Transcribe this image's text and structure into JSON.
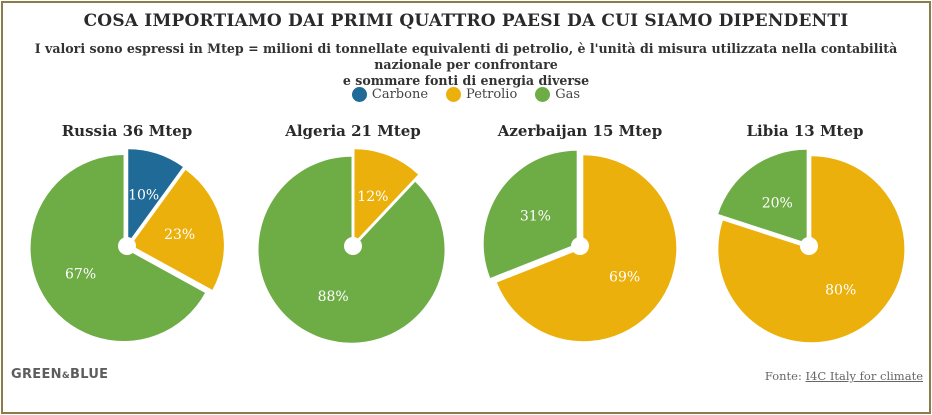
{
  "header": {
    "title": "COSA IMPORTIAMO DAI PRIMI QUATTRO PAESI DA CUI SIAMO DIPENDENTI",
    "subtitle_line1": "I valori sono espressi in Mtep = milioni di tonnellate equivalenti di petrolio, è l'unità di misura utilizzata nella contabilità nazionale per confrontare",
    "subtitle_line2": "e sommare fonti di energia diverse"
  },
  "legend": [
    {
      "label": "Carbone",
      "color": "#1f6a96"
    },
    {
      "label": "Petrolio",
      "color": "#ecb00d"
    },
    {
      "label": "Gas",
      "color": "#6ead46"
    }
  ],
  "chart_data": [
    {
      "type": "pie",
      "title": "Russia 36 Mtep",
      "slices": [
        {
          "name": "Carbone",
          "value": 10,
          "label": "10%",
          "color": "#1f6a96"
        },
        {
          "name": "Petrolio",
          "value": 23,
          "label": "23%",
          "color": "#ecb00d"
        },
        {
          "name": "Gas",
          "value": 67,
          "label": "67%",
          "color": "#6ead46"
        }
      ]
    },
    {
      "type": "pie",
      "title": "Algeria 21 Mtep",
      "slices": [
        {
          "name": "Petrolio",
          "value": 12,
          "label": "12%",
          "color": "#ecb00d"
        },
        {
          "name": "Gas",
          "value": 88,
          "label": "88%",
          "color": "#6ead46"
        }
      ]
    },
    {
      "type": "pie",
      "title": "Azerbaijan 15 Mtep",
      "slices": [
        {
          "name": "Petrolio",
          "value": 69,
          "label": "69%",
          "color": "#ecb00d"
        },
        {
          "name": "Gas",
          "value": 31,
          "label": "31%",
          "color": "#6ead46"
        }
      ]
    },
    {
      "type": "pie",
      "title": "Libia 13 Mtep",
      "slices": [
        {
          "name": "Petrolio",
          "value": 80,
          "label": "80%",
          "color": "#ecb00d"
        },
        {
          "name": "Gas",
          "value": 20,
          "label": "20%",
          "color": "#6ead46"
        }
      ]
    }
  ],
  "footer": {
    "logo_left": "GREEN",
    "logo_amp": "&",
    "logo_right": "BLUE",
    "source_prefix": "Fonte: ",
    "source_link": "I4C Italy for climate"
  }
}
